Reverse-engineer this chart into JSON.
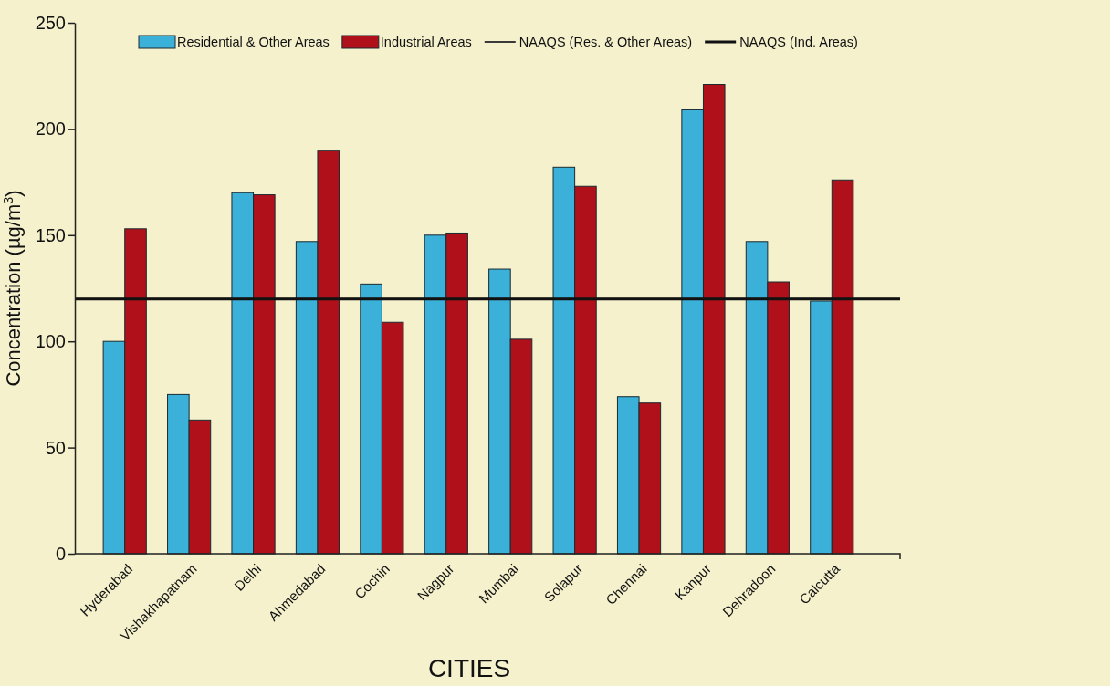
{
  "chart_data": {
    "type": "bar",
    "xlabel": "CITIES",
    "ylabel": "Concentration (µg/m$^{3}$)",
    "categories": [
      "Hyderabad",
      "Vishakhapatnam",
      "Delhi",
      "Ahmedabad",
      "Cochin",
      "Nagpur",
      "Mumbai",
      "Solapur",
      "Chennai",
      "Kanpur",
      "Dehradoon",
      "Calcutta"
    ],
    "series": [
      {
        "name": "Residential & Other Areas",
        "color": "#3bb0d8",
        "values": [
          100,
          75,
          170,
          147,
          127,
          150,
          134,
          182,
          74,
          209,
          147,
          119
        ]
      },
      {
        "name": "Industrial Areas",
        "color": "#b0101a",
        "values": [
          153,
          63,
          169,
          190,
          109,
          151,
          101,
          173,
          71,
          221,
          128,
          176
        ]
      }
    ],
    "ylim": [
      0,
      250
    ],
    "yticks": [
      0,
      50,
      100,
      150,
      200,
      250
    ],
    "ref_lines": [
      {
        "axis": "y",
        "value": 120,
        "label": "NAAQS (Res. & Other Areas)",
        "color": "#3a3a3a"
      },
      {
        "axis": "y",
        "value": 120,
        "label": "NAAQS (Ind. Areas)",
        "color": "#111111"
      }
    ],
    "legend": "top",
    "grid": false
  }
}
